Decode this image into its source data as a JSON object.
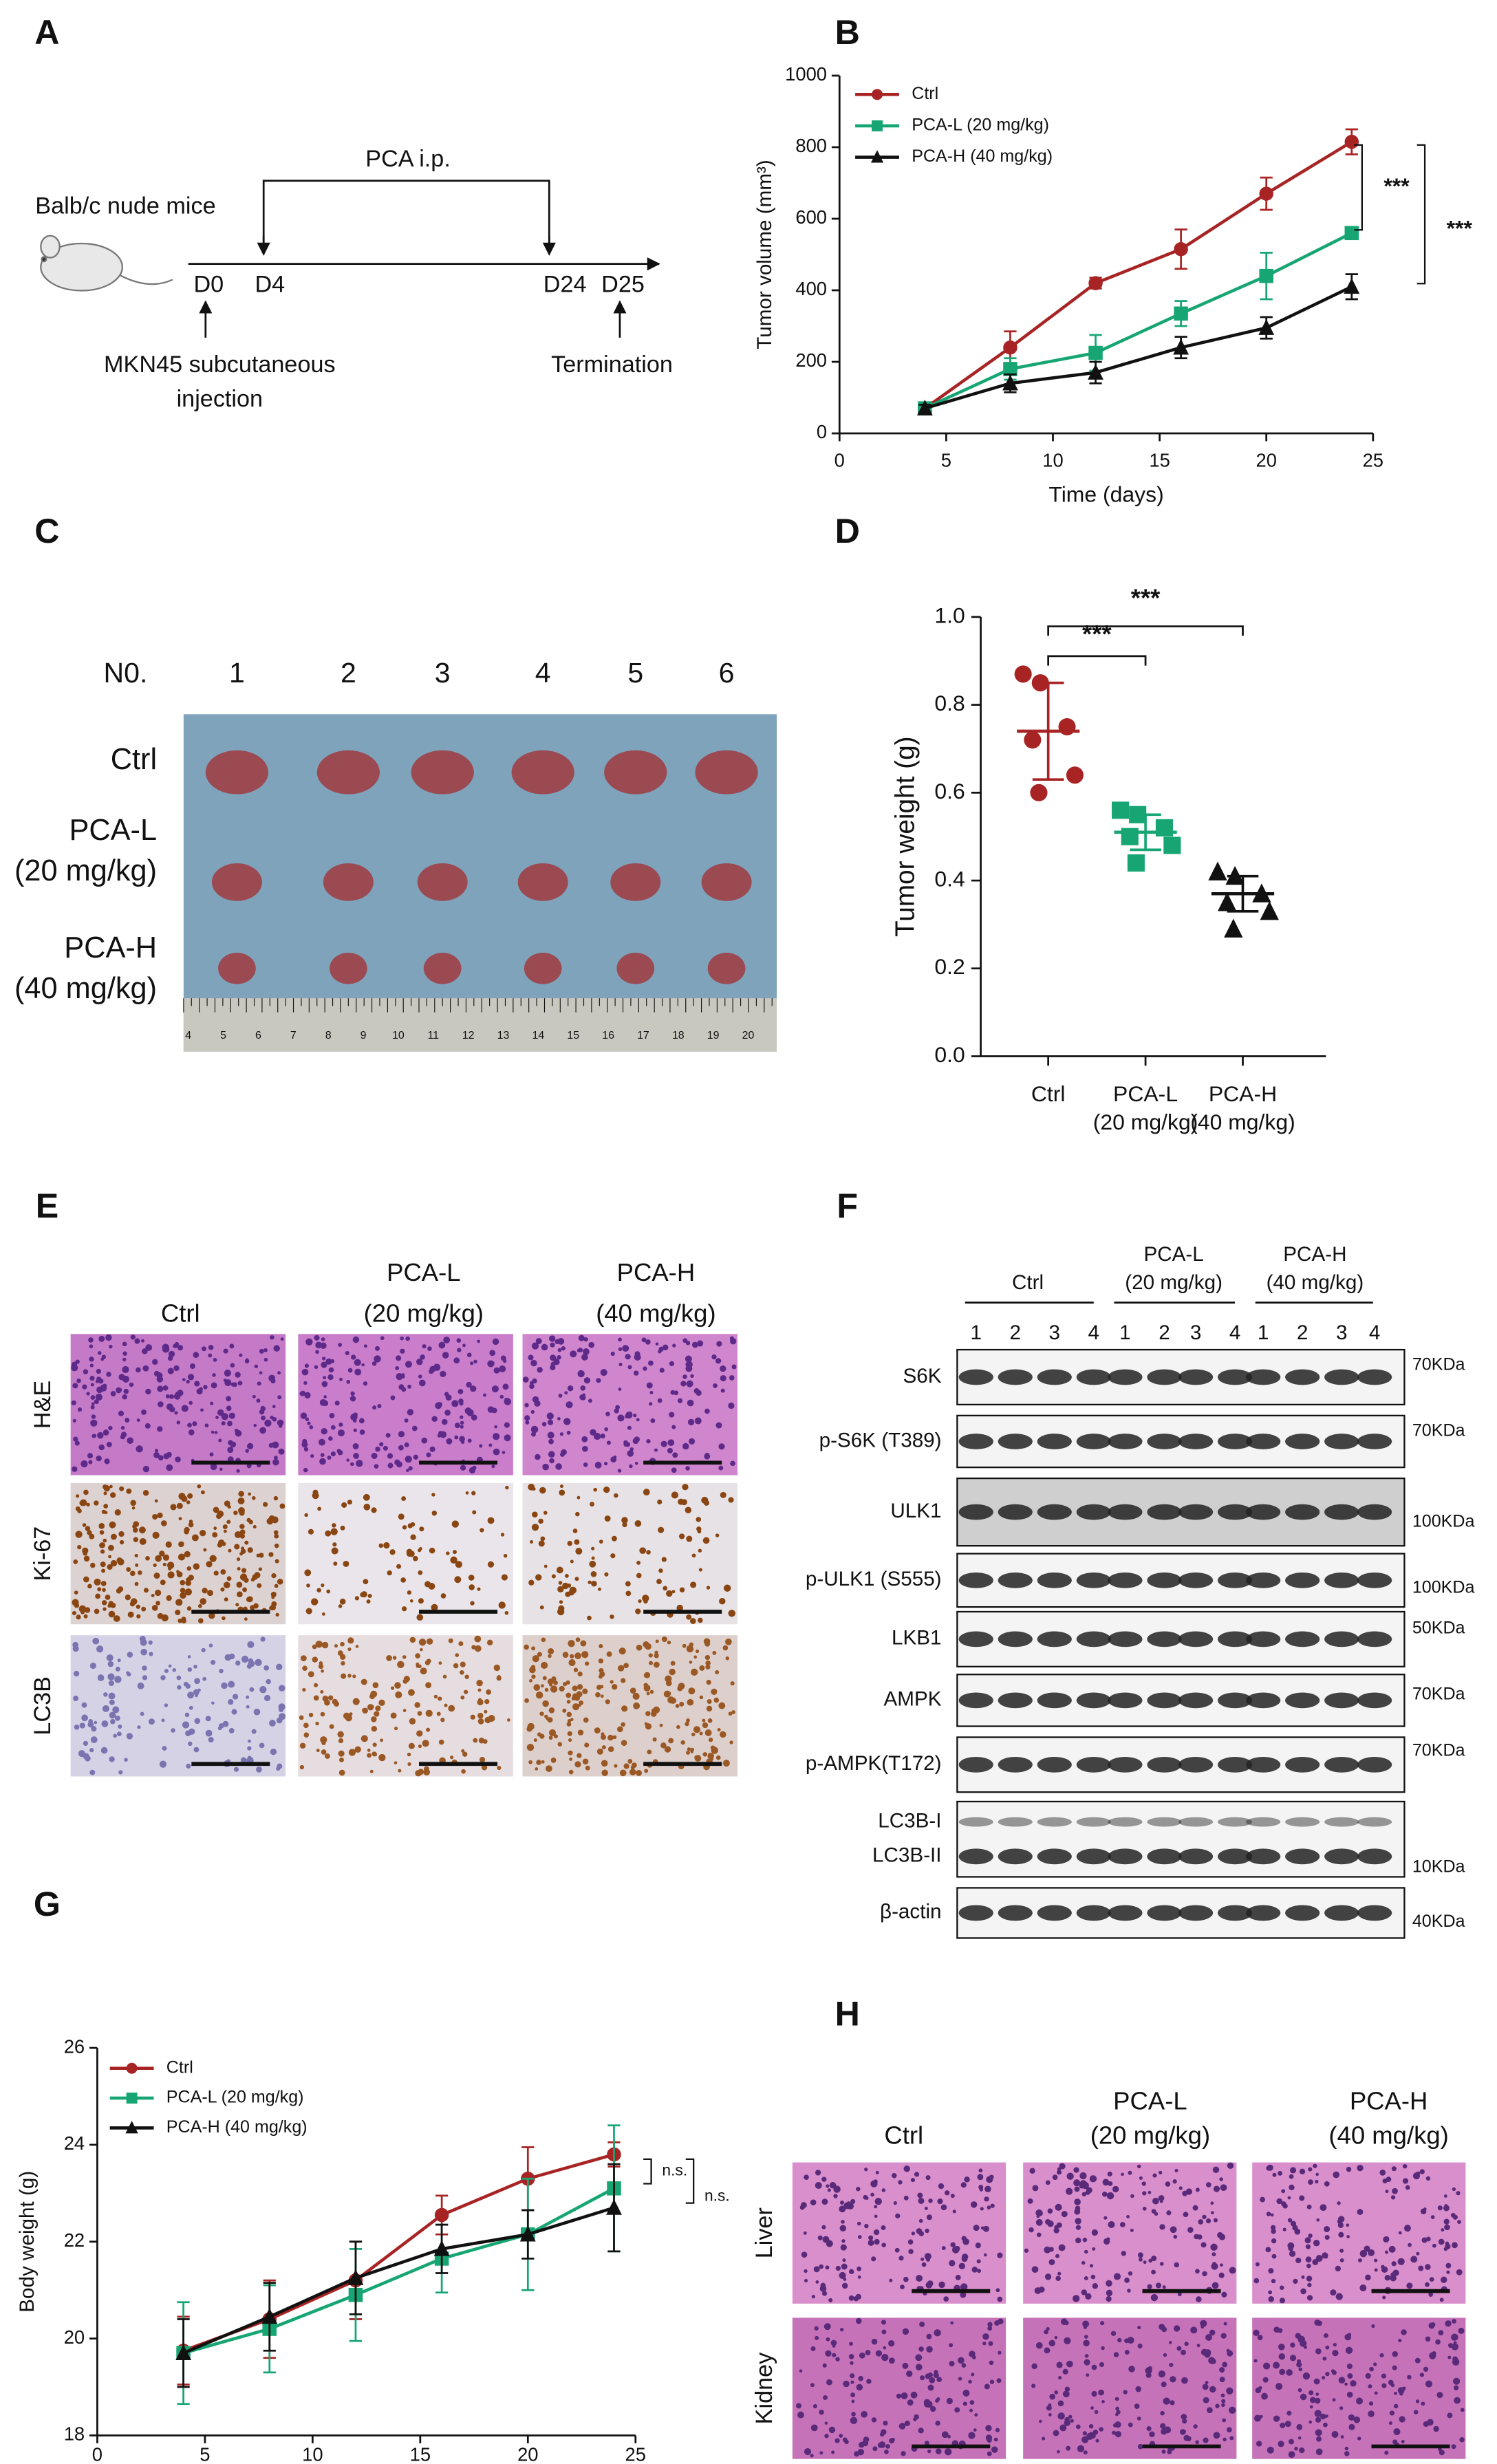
{
  "panel_labels": [
    "A",
    "B",
    "C",
    "D",
    "E",
    "F",
    "G",
    "H"
  ],
  "panel_a": {
    "subject": "Balb/c nude mice",
    "treatment": "PCA i.p.",
    "days": [
      "D0",
      "D4",
      "D24",
      "D25"
    ],
    "injection": [
      "MKN45 subcutaneous",
      "injection"
    ],
    "end": "Termination"
  },
  "panel_c": {
    "number_header": "N0.",
    "numbers": [
      "1",
      "2",
      "3",
      "4",
      "5",
      "6"
    ],
    "rows": [
      [
        "Ctrl"
      ],
      [
        "PCA-L",
        "(20 mg/kg)"
      ],
      [
        "PCA-H",
        "(40 mg/kg)"
      ]
    ],
    "ruler": [
      "4",
      "5",
      "6",
      "7",
      "8",
      "9",
      "10",
      "11",
      "12",
      "13",
      "14",
      "15",
      "16",
      "17",
      "18",
      "19",
      "20"
    ]
  },
  "panel_e": {
    "columns": [
      [
        "Ctrl"
      ],
      [
        "PCA-L",
        "(20 mg/kg)"
      ],
      [
        "PCA-H",
        "(40 mg/kg)"
      ]
    ],
    "rows": [
      "H&E",
      "Ki-67",
      "LC3B"
    ]
  },
  "panel_f": {
    "groups": [
      [
        "Ctrl"
      ],
      [
        "PCA-L",
        "(20 mg/kg)"
      ],
      [
        "PCA-H",
        "(40 mg/kg)"
      ]
    ],
    "lanes": [
      "1",
      "2",
      "3",
      "4"
    ],
    "bands": [
      {
        "labels": [
          "S6K"
        ],
        "size": "70KDa"
      },
      {
        "labels": [
          "p-S6K (T389)"
        ],
        "size": "70KDa"
      },
      {
        "labels": [
          "ULK1"
        ],
        "size": "100KDa"
      },
      {
        "labels": [
          "p-ULK1 (S555)"
        ],
        "size": "100KDa"
      },
      {
        "labels": [
          "LKB1"
        ],
        "size": "50KDa"
      },
      {
        "labels": [
          "AMPK"
        ],
        "size": "70KDa"
      },
      {
        "labels": [
          "p-AMPK(T172)"
        ],
        "size": "70KDa"
      },
      {
        "labels": [
          "LC3B-I",
          "LC3B-II"
        ],
        "size": "10KDa"
      },
      {
        "labels": [
          "β-actin"
        ],
        "size": "40KDa"
      }
    ]
  },
  "panel_h": {
    "columns": [
      [
        "Ctrl"
      ],
      [
        "PCA-L",
        "(20 mg/kg)"
      ],
      [
        "PCA-H",
        "(40 mg/kg)"
      ]
    ],
    "rows": [
      "Liver",
      "Kidney"
    ]
  },
  "chart_data": [
    {
      "type": "line",
      "x_label": "Time (days)",
      "y_label": "Tumor volume (mm³)",
      "x": [
        4,
        8,
        12,
        16,
        20,
        24
      ],
      "series": [
        {
          "name": "Ctrl",
          "color": "#a82424",
          "marker": "circle",
          "values": [
            70,
            240,
            420,
            515,
            670,
            815
          ],
          "errors": [
            10,
            45,
            15,
            55,
            45,
            35
          ]
        },
        {
          "name": "PCA-L (20 mg/kg)",
          "color": "#17a673",
          "marker": "square",
          "values": [
            70,
            180,
            225,
            335,
            440,
            560
          ],
          "errors": [
            10,
            30,
            50,
            35,
            65,
            15
          ]
        },
        {
          "name": "PCA-H (40 mg/kg)",
          "color": "#111111",
          "marker": "triangle",
          "values": [
            70,
            140,
            170,
            240,
            295,
            410
          ],
          "errors": [
            10,
            25,
            30,
            30,
            30,
            35
          ]
        }
      ],
      "xlim": [
        0,
        25
      ],
      "xticks": [
        0,
        5,
        10,
        15,
        20,
        25
      ],
      "ylim": [
        0,
        1000
      ],
      "yticks": [
        0,
        200,
        400,
        600,
        800,
        1000
      ],
      "annotations": [
        "***",
        "***"
      ]
    },
    {
      "type": "strip",
      "y_label": "Tumor weight (g)",
      "categories": [
        [
          "Ctrl"
        ],
        [
          "PCA-L",
          "(20 mg/kg)"
        ],
        [
          "PCA-H",
          "(40 mg/kg)"
        ]
      ],
      "colors": [
        "#a82424",
        "#17a673",
        "#111111"
      ],
      "markers": [
        "circle",
        "square",
        "triangle"
      ],
      "values": [
        [
          0.87,
          0.85,
          0.75,
          0.72,
          0.64,
          0.6
        ],
        [
          0.56,
          0.55,
          0.52,
          0.5,
          0.48,
          0.44
        ],
        [
          0.42,
          0.41,
          0.37,
          0.35,
          0.33,
          0.29
        ]
      ],
      "means": [
        0.74,
        0.51,
        0.37
      ],
      "sds": [
        0.11,
        0.04,
        0.04
      ],
      "ylim": [
        0,
        1.0
      ],
      "yticks": [
        {
          "value": 0,
          "label": "0.0"
        },
        0.2,
        0.4,
        0.6,
        0.8,
        {
          "value": 1.0,
          "label": "1.0"
        }
      ],
      "annotations": [
        "***",
        "***"
      ]
    },
    {
      "type": "line",
      "y_label": "Body weight (g)",
      "x": [
        4,
        8,
        12,
        16,
        20,
        24
      ],
      "series": [
        {
          "name": "Ctrl",
          "color": "#a82424",
          "marker": "circle",
          "values": [
            19.75,
            20.4,
            21.2,
            22.55,
            23.3,
            23.8
          ],
          "errors": [
            0.7,
            0.8,
            0.8,
            0.4,
            0.65,
            0.25
          ]
        },
        {
          "name": "PCA-L (20 mg/kg)",
          "color": "#17a673",
          "marker": "square",
          "values": [
            19.7,
            20.2,
            20.9,
            21.65,
            22.15,
            23.1
          ],
          "errors": [
            1.05,
            0.9,
            0.95,
            0.7,
            1.15,
            1.3
          ]
        },
        {
          "name": "PCA-H (40 mg/kg)",
          "color": "#111111",
          "marker": "triangle",
          "values": [
            19.7,
            20.45,
            21.25,
            21.85,
            22.15,
            22.7
          ],
          "errors": [
            0.7,
            0.7,
            0.75,
            0.5,
            0.5,
            0.9
          ]
        }
      ],
      "xlim": [
        0,
        25
      ],
      "xticks": [
        0,
        5,
        10,
        15,
        20,
        25
      ],
      "ylim": [
        18,
        26
      ],
      "yticks": [
        18,
        20,
        22,
        24,
        26
      ],
      "annotations": [
        "n.s.",
        "n.s."
      ]
    }
  ]
}
